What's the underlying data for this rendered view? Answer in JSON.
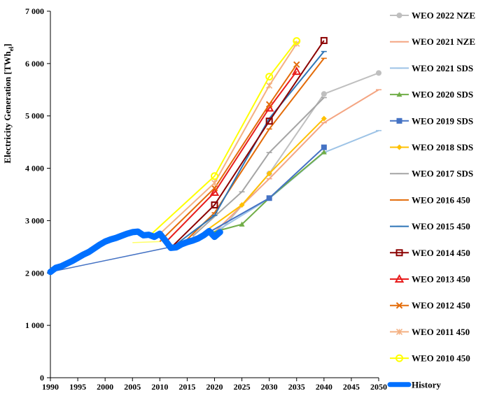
{
  "chart_data": {
    "type": "line",
    "title": "",
    "xlabel": "",
    "ylabel": "Electricity Generation [TWh",
    "ylabel_sub": "el",
    "ylabel_close": "]",
    "xlim": [
      1990,
      2050
    ],
    "ylim": [
      0,
      7000
    ],
    "grid": false,
    "legend_position": "right",
    "x_ticks": [
      1990,
      1995,
      2000,
      2005,
      2010,
      2015,
      2020,
      2025,
      2030,
      2035,
      2040,
      2045,
      2050
    ],
    "x_tick_labels": [
      "1990",
      "1995",
      "2000",
      "2005",
      "2010",
      "2015",
      "2020",
      "2025",
      "2030",
      "2035",
      "2040",
      "2045",
      "2050"
    ],
    "y_ticks": [
      0,
      1000,
      2000,
      3000,
      4000,
      5000,
      6000,
      7000
    ],
    "y_tick_labels": [
      "0",
      "1 000",
      "2 000",
      "3 000",
      "4 000",
      "5 000",
      "6 000",
      "7 000"
    ],
    "series": [
      {
        "name": "WEO 2022 NZE",
        "color": "#bfbfbf",
        "marker": "circle",
        "points": [
          [
            2021,
            2800
          ],
          [
            2030,
            3900
          ],
          [
            2040,
            5420
          ],
          [
            2050,
            5820
          ]
        ]
      },
      {
        "name": "WEO 2021 NZE",
        "color": "#f4a582",
        "marker": "dash",
        "points": [
          [
            2020,
            2780
          ],
          [
            2030,
            3800
          ],
          [
            2040,
            4870
          ],
          [
            2050,
            5500
          ]
        ]
      },
      {
        "name": "WEO 2021 SDS",
        "color": "#9dc3e6",
        "marker": "dash",
        "points": [
          [
            2020,
            2780
          ],
          [
            2030,
            3420
          ],
          [
            2040,
            4300
          ],
          [
            2050,
            4720
          ]
        ]
      },
      {
        "name": "WEO 2020 SDS",
        "color": "#70ad47",
        "marker": "triangle",
        "points": [
          [
            2019,
            2760
          ],
          [
            2025,
            2930
          ],
          [
            2030,
            3430
          ],
          [
            2040,
            4310
          ]
        ]
      },
      {
        "name": "WEO 2019 SDS",
        "color": "#4472c4",
        "marker": "square",
        "points": [
          [
            2018,
            2720
          ],
          [
            2030,
            3430
          ],
          [
            2040,
            4400
          ]
        ]
      },
      {
        "name": "WEO 2018 SDS",
        "color": "#ffc000",
        "marker": "diamond",
        "points": [
          [
            2017,
            2700
          ],
          [
            2025,
            3300
          ],
          [
            2030,
            3900
          ],
          [
            2040,
            4950
          ]
        ]
      },
      {
        "name": "WEO 2017 SDS",
        "color": "#a5a5a5",
        "marker": "dash",
        "points": [
          [
            2016,
            2700
          ],
          [
            2025,
            3550
          ],
          [
            2030,
            4300
          ],
          [
            2040,
            5350
          ]
        ]
      },
      {
        "name": "WEO 2016 450",
        "color": "#e36c09",
        "marker": "dash",
        "points": [
          [
            2014,
            2540
          ],
          [
            2020,
            3150
          ],
          [
            2030,
            4750
          ],
          [
            2040,
            6100
          ]
        ]
      },
      {
        "name": "WEO 2015 450",
        "color": "#2e75b6",
        "marker": "dash",
        "points": [
          [
            2013,
            2550
          ],
          [
            2020,
            3100
          ],
          [
            2030,
            4950
          ],
          [
            2040,
            6230
          ]
        ]
      },
      {
        "name": "WEO 2014 450",
        "color": "#8b0000",
        "marker": "square-open",
        "points": [
          [
            2012,
            2480
          ],
          [
            2020,
            3300
          ],
          [
            2030,
            4900
          ],
          [
            2040,
            6440
          ]
        ]
      },
      {
        "name": "WEO 2013 450",
        "color": "#e81c1c",
        "marker": "triangle-open",
        "points": [
          [
            2011,
            2580
          ],
          [
            2020,
            3540
          ],
          [
            2030,
            5150
          ],
          [
            2035,
            5850
          ]
        ]
      },
      {
        "name": "WEO 2012 450",
        "color": "#e46c0a",
        "marker": "x",
        "points": [
          [
            2010,
            2600
          ],
          [
            2020,
            3620
          ],
          [
            2030,
            5220
          ],
          [
            2035,
            5980
          ]
        ]
      },
      {
        "name": "WEO 2011 450",
        "color": "#f4b183",
        "marker": "star",
        "points": [
          [
            2009,
            2650
          ],
          [
            2020,
            3720
          ],
          [
            2030,
            5580
          ],
          [
            2035,
            6380
          ]
        ]
      },
      {
        "name": "WEO 2010 450",
        "color": "#ffff00",
        "marker": "circle-open",
        "points": [
          [
            2008,
            2700
          ],
          [
            2020,
            3850
          ],
          [
            2030,
            5750
          ],
          [
            2035,
            6430
          ]
        ]
      }
    ],
    "baselines": [
      {
        "color": "#4472c4",
        "points": [
          [
            1990,
            2020
          ],
          [
            2014,
            2540
          ]
        ]
      },
      {
        "color": "#ffff66",
        "points": [
          [
            2005,
            2580
          ],
          [
            2010,
            2600
          ]
        ]
      }
    ],
    "history": {
      "name": "History",
      "color": "#0070ff",
      "points": [
        [
          1990,
          2020
        ],
        [
          1991,
          2100
        ],
        [
          1992,
          2130
        ],
        [
          1993,
          2180
        ],
        [
          1994,
          2230
        ],
        [
          1995,
          2290
        ],
        [
          1996,
          2350
        ],
        [
          1997,
          2400
        ],
        [
          1998,
          2470
        ],
        [
          1999,
          2540
        ],
        [
          2000,
          2600
        ],
        [
          2001,
          2640
        ],
        [
          2002,
          2670
        ],
        [
          2003,
          2710
        ],
        [
          2004,
          2750
        ],
        [
          2005,
          2780
        ],
        [
          2006,
          2790
        ],
        [
          2007,
          2720
        ],
        [
          2008,
          2730
        ],
        [
          2009,
          2690
        ],
        [
          2010,
          2750
        ],
        [
          2011,
          2620
        ],
        [
          2012,
          2480
        ],
        [
          2013,
          2490
        ],
        [
          2014,
          2550
        ],
        [
          2015,
          2590
        ],
        [
          2016,
          2620
        ],
        [
          2017,
          2660
        ],
        [
          2018,
          2720
        ],
        [
          2019,
          2800
        ],
        [
          2020,
          2690
        ],
        [
          2021,
          2780
        ]
      ]
    }
  }
}
